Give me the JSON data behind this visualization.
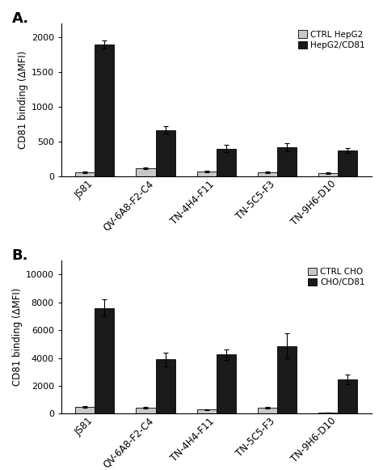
{
  "panel_A": {
    "title": "A.",
    "categories": [
      "JS81",
      "QV-6A8-F2-C4",
      "TN-4H4-F11",
      "TN-5C5-F3",
      "TN-9H6-D10"
    ],
    "ctrl_values": [
      60,
      120,
      70,
      60,
      50
    ],
    "ctrl_errors": [
      8,
      15,
      10,
      8,
      8
    ],
    "exp_values": [
      1900,
      670,
      400,
      420,
      370
    ],
    "exp_errors": [
      55,
      55,
      50,
      60,
      35
    ],
    "ylabel": "CD81 binding (ΔMFI)",
    "ylim": [
      0,
      2200
    ],
    "yticks": [
      0,
      500,
      1000,
      1500,
      2000
    ],
    "legend_ctrl": "CTRL HepG2",
    "legend_exp": "HepG2/CD81",
    "ctrl_color": "#c8c8c8",
    "exp_color": "#1a1a1a"
  },
  "panel_B": {
    "title": "B.",
    "categories": [
      "JS81",
      "QV-6A8-F2-C4",
      "TN-4H4-F11",
      "TN-5C5-F3",
      "TN-9H6-D10"
    ],
    "ctrl_values": [
      480,
      420,
      280,
      400,
      80
    ],
    "ctrl_errors": [
      60,
      50,
      40,
      60,
      20
    ],
    "exp_values": [
      7600,
      3900,
      4250,
      4850,
      2450
    ],
    "exp_errors": [
      600,
      500,
      380,
      900,
      350
    ],
    "ylabel": "CD81 binding (ΔMFI)",
    "ylim": [
      0,
      11000
    ],
    "yticks": [
      0,
      2000,
      4000,
      6000,
      8000,
      10000
    ],
    "legend_ctrl": "CTRL CHO",
    "legend_exp": "CHO/CD81",
    "ctrl_color": "#c8c8c8",
    "exp_color": "#1a1a1a"
  },
  "bar_width": 0.32,
  "background_color": "#ffffff",
  "figure_width": 4.74,
  "figure_height": 5.81,
  "dpi": 100
}
